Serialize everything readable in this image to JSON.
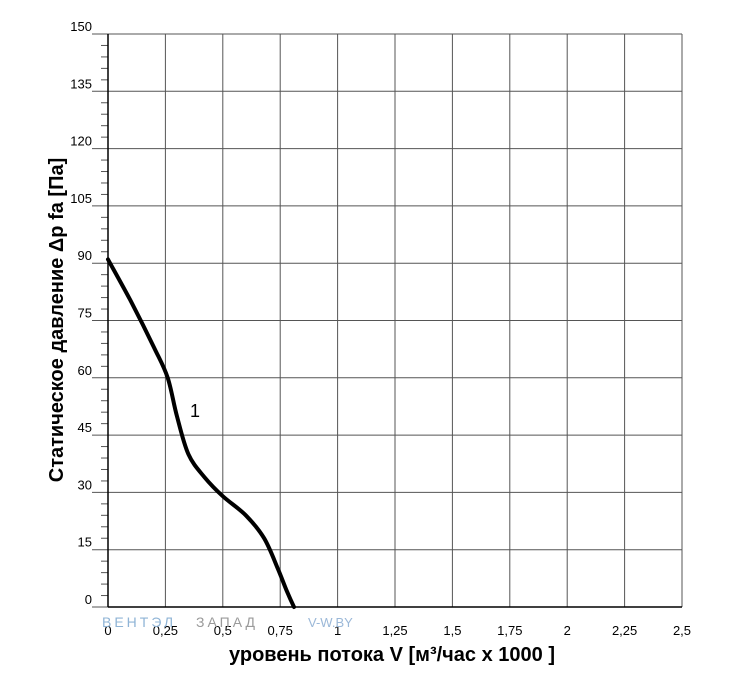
{
  "chart_data": {
    "type": "line",
    "xlabel": "уровень потока  V [м³/час х 1000 ]",
    "ylabel": "Статическое давление  Δp fa [Па]",
    "xlim": [
      0,
      2.5
    ],
    "ylim": [
      0,
      150
    ],
    "x_ticks": [
      "0",
      "0,25",
      "0,5",
      "0,75",
      "1",
      "1,25",
      "1,5",
      "1,75",
      "2",
      "2,25",
      "2,5"
    ],
    "y_ticks": [
      "0",
      "15",
      "30",
      "45",
      "60",
      "75",
      "90",
      "105",
      "120",
      "135",
      "150"
    ],
    "grid": true,
    "series": [
      {
        "name": "1",
        "color": "#000000",
        "x": [
          0,
          0.1,
          0.2,
          0.26,
          0.3,
          0.35,
          0.42,
          0.5,
          0.6,
          0.68,
          0.74,
          0.78,
          0.81
        ],
        "y": [
          91,
          80,
          68,
          60,
          50,
          40,
          34,
          29,
          24,
          18,
          10,
          4,
          0
        ]
      }
    ],
    "watermark": {
      "text1": "ВЕНТЭЛ",
      "text2": "ЗАПАД",
      "text3": "V-W.BY"
    }
  }
}
